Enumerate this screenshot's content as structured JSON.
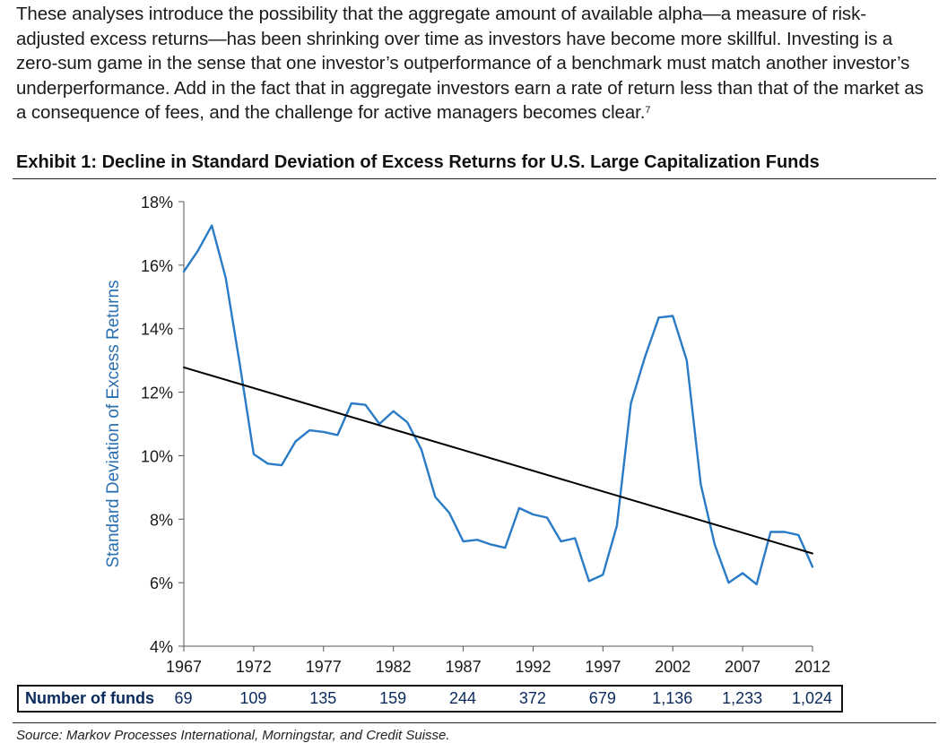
{
  "intro": {
    "text": "These analyses introduce the possibility that the aggregate amount of available alpha—a measure of risk-adjusted excess returns—has been shrinking over time as investors have become more skillful. Investing is a zero-sum game in the sense that one investor’s outperformance of a benchmark must match another investor’s underperformance. Add in the fact that in aggregate investors earn a rate of return less than that of the market as a consequence of fees, and the challenge for active managers becomes clear.",
    "footnote": "7"
  },
  "exhibit_title": "Exhibit 1: Decline in Standard Deviation of Excess Returns for U.S. Large Capitalization Funds",
  "chart_data": {
    "type": "line",
    "title": "Exhibit 1: Decline in Standard Deviation of Excess Returns for U.S. Large Capitalization Funds",
    "xlabel": "",
    "ylabel": "Standard Deviation of Excess Returns",
    "xlim": [
      1967,
      2012
    ],
    "ylim": [
      4,
      18
    ],
    "x_ticks": [
      1967,
      1972,
      1977,
      1982,
      1987,
      1992,
      1997,
      2002,
      2007,
      2012
    ],
    "x_tick_labels": [
      "1967",
      "1972",
      "1977",
      "1982",
      "1987",
      "1992",
      "1997",
      "2002",
      "2007",
      "2012"
    ],
    "y_ticks": [
      4,
      6,
      8,
      10,
      12,
      14,
      16,
      18
    ],
    "y_tick_labels": [
      "4%",
      "6%",
      "8%",
      "10%",
      "12%",
      "14%",
      "16%",
      "18%"
    ],
    "grid": false,
    "legend": "none",
    "series": [
      {
        "color": "#2a7bc6",
        "x": [
          1967,
          1968,
          1969,
          1970,
          1971,
          1972,
          1973,
          1974,
          1975,
          1976,
          1977,
          1978,
          1979,
          1980,
          1981,
          1982,
          1983,
          1984,
          1985,
          1986,
          1987,
          1988,
          1989,
          1990,
          1991,
          1992,
          1993,
          1994,
          1995,
          1996,
          1997,
          1998,
          1999,
          2000,
          2001,
          2002,
          2003,
          2004,
          2005,
          2006,
          2007,
          2008,
          2009,
          2010,
          2011,
          2012
        ],
        "values": [
          15.8,
          16.45,
          17.25,
          15.6,
          12.9,
          10.05,
          9.75,
          9.7,
          10.45,
          10.8,
          10.75,
          10.65,
          11.65,
          11.6,
          11.0,
          11.4,
          11.05,
          10.2,
          8.7,
          8.2,
          7.3,
          7.35,
          7.2,
          7.1,
          8.35,
          8.15,
          8.05,
          7.3,
          7.4,
          6.05,
          6.25,
          7.8,
          11.65,
          13.1,
          14.35,
          14.4,
          13.0,
          9.1,
          7.2,
          6.0,
          6.3,
          5.95,
          7.6,
          7.6,
          7.5,
          6.5
        ]
      },
      {
        "color": "#000000",
        "x": [
          1967,
          2012
        ],
        "values": [
          12.78,
          6.92
        ]
      }
    ]
  },
  "funds": {
    "label": "Number of funds",
    "values": [
      "69",
      "109",
      "135",
      "159",
      "244",
      "372",
      "679",
      "1,136",
      "1,233",
      "1,024"
    ]
  },
  "source": "Source: Markov Processes International, Morningstar, and Credit Suisse."
}
